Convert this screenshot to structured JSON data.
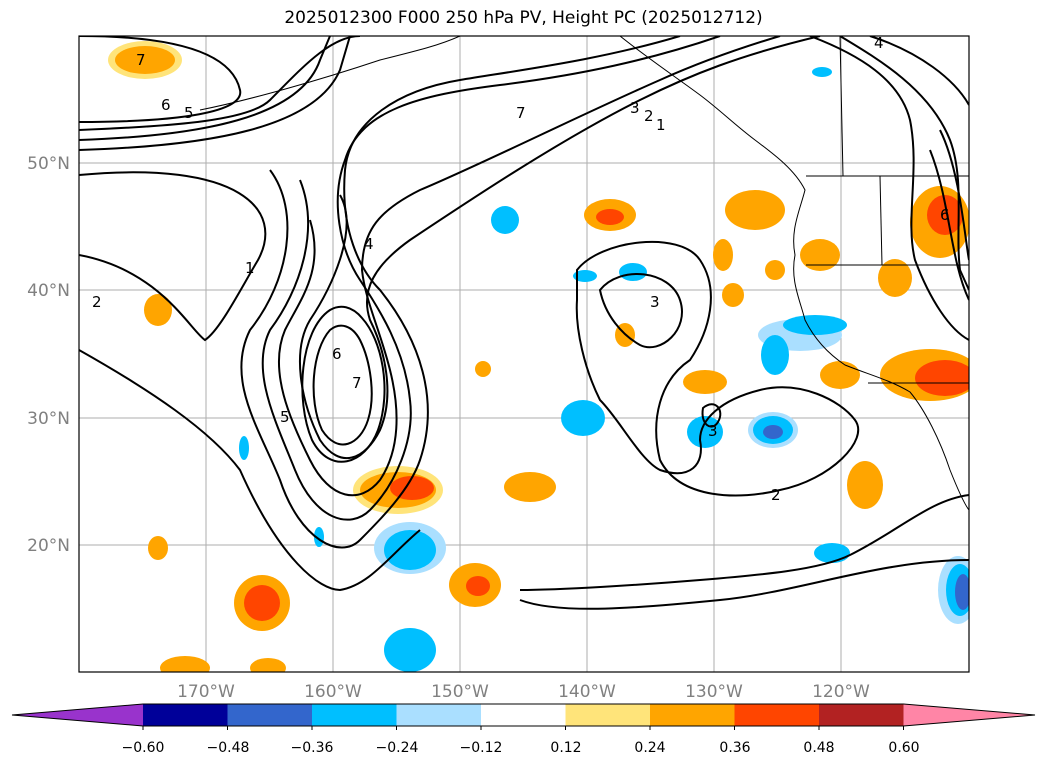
{
  "title": "2025012300 F000 250 hPa PV, Height PC (2025012712)",
  "lon_labels": [
    "170°W",
    "160°W",
    "150°W",
    "140°W",
    "130°W",
    "120°W"
  ],
  "lat_labels": [
    "50°N",
    "40°N",
    "30°N",
    "20°N"
  ],
  "colorbar": {
    "ticks": [
      "−0.60",
      "−0.48",
      "−0.36",
      "−0.24",
      "−0.12",
      "0.12",
      "0.24",
      "0.36",
      "0.48",
      "0.60"
    ],
    "colors": [
      "#9933cc",
      "#000099",
      "#3366cc",
      "#00bfff",
      "#aadfff",
      "#ffffff",
      "#ffe47a",
      "#ffa500",
      "#ff4500",
      "#b22222",
      "#ff85a6"
    ]
  },
  "contour_labels": [
    "7",
    "6",
    "5",
    "1",
    "2",
    "4",
    "6",
    "7",
    "5",
    "7",
    "3",
    "2",
    "1",
    "3",
    "3",
    "2",
    "4",
    "6"
  ],
  "colors": {
    "contour": "#000000",
    "grid": "#999999"
  }
}
